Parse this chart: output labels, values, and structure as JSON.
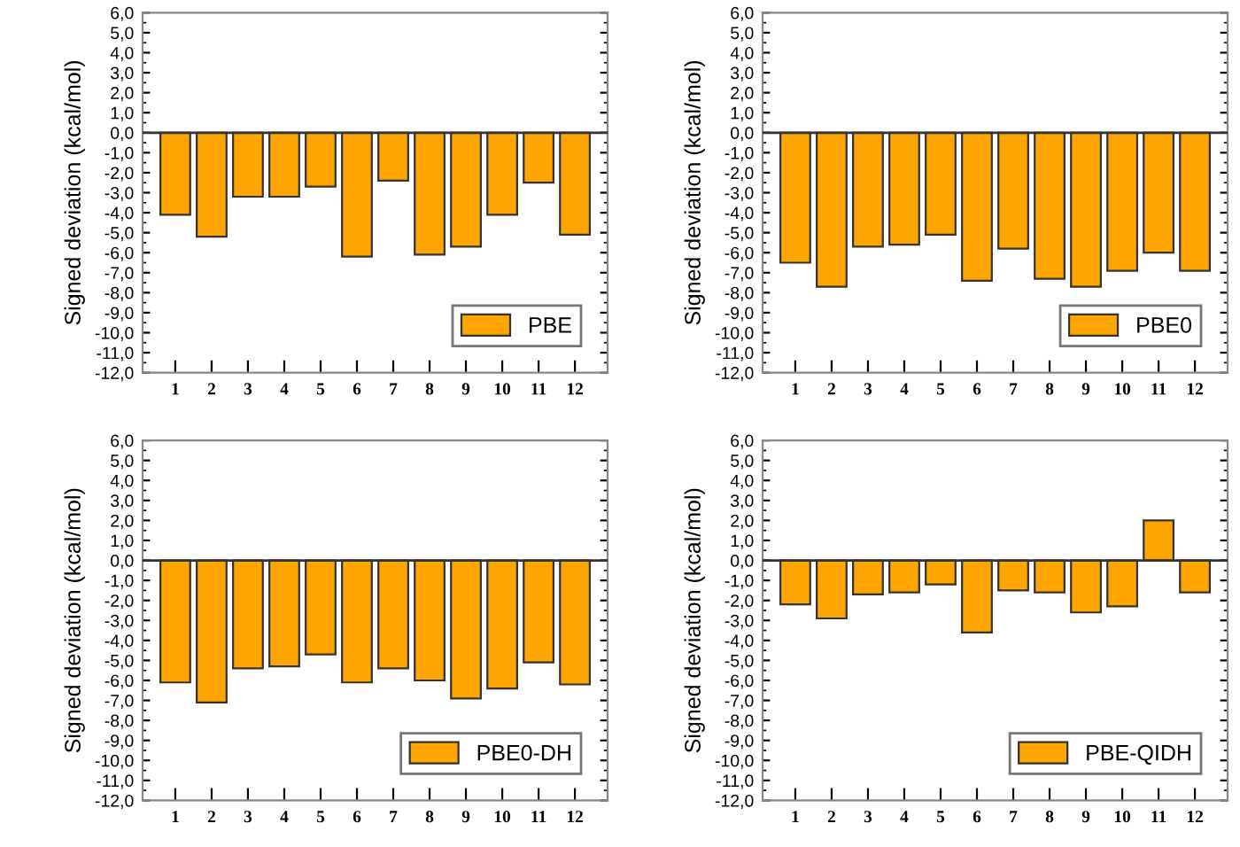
{
  "chart_data": [
    {
      "type": "bar",
      "ylabel": "Signed deviation (kcal/mol)",
      "categories": [
        "1",
        "2",
        "3",
        "4",
        "5",
        "6",
        "7",
        "8",
        "9",
        "10",
        "11",
        "12"
      ],
      "series": [
        {
          "name": "PBE",
          "color": "#ffa500",
          "values": [
            -4.1,
            -5.2,
            -3.2,
            -3.2,
            -2.7,
            -6.2,
            -2.4,
            -6.1,
            -5.7,
            -4.1,
            -2.5,
            -5.1
          ]
        }
      ],
      "ref_lines": [
        {
          "axis": "y",
          "value": 0,
          "color": "#333333"
        }
      ],
      "ylim": [
        -12,
        6
      ],
      "yticks": [
        {
          "value": -12,
          "label": "-12,0"
        },
        {
          "value": -11,
          "label": "-11,0"
        },
        {
          "value": -10,
          "label": "-10,0"
        },
        {
          "value": -9,
          "label": "-9,0"
        },
        {
          "value": -8,
          "label": "-8,0"
        },
        {
          "value": -7,
          "label": "-7,0"
        },
        {
          "value": -6,
          "label": "-6,0"
        },
        {
          "value": -5,
          "label": "-5,0"
        },
        {
          "value": -4,
          "label": "-4,0"
        },
        {
          "value": -3,
          "label": "-3,0"
        },
        {
          "value": -2,
          "label": "-2,0"
        },
        {
          "value": -1,
          "label": "-1,0"
        },
        {
          "value": 0,
          "label": "0,0"
        },
        {
          "value": 1,
          "label": "1,0"
        },
        {
          "value": 2,
          "label": "2,0"
        },
        {
          "value": 3,
          "label": "3,0"
        },
        {
          "value": 4,
          "label": "4,0"
        },
        {
          "value": 5,
          "label": "5,0"
        },
        {
          "value": 6,
          "label": "6,0"
        }
      ],
      "legend": "bottom right",
      "grid": false
    },
    {
      "type": "bar",
      "ylabel": "Signed deviation (kcal/mol)",
      "categories": [
        "1",
        "2",
        "3",
        "4",
        "5",
        "6",
        "7",
        "8",
        "9",
        "10",
        "11",
        "12"
      ],
      "series": [
        {
          "name": "PBE0",
          "color": "#ffa500",
          "values": [
            -6.5,
            -7.7,
            -5.7,
            -5.6,
            -5.1,
            -7.4,
            -5.8,
            -7.3,
            -7.7,
            -6.9,
            -6.0,
            -6.9
          ]
        }
      ],
      "ref_lines": [
        {
          "axis": "y",
          "value": 0,
          "color": "#333333"
        }
      ],
      "ylim": [
        -12,
        6
      ],
      "yticks": [
        {
          "value": -12,
          "label": "-12,0"
        },
        {
          "value": -11,
          "label": "-11,0"
        },
        {
          "value": -10,
          "label": "-10,0"
        },
        {
          "value": -9,
          "label": "-9,0"
        },
        {
          "value": -8,
          "label": "-8,0"
        },
        {
          "value": -7,
          "label": "-7,0"
        },
        {
          "value": -6,
          "label": "-6,0"
        },
        {
          "value": -5,
          "label": "-5,0"
        },
        {
          "value": -4,
          "label": "-4,0"
        },
        {
          "value": -3,
          "label": "-3,0"
        },
        {
          "value": -2,
          "label": "-2,0"
        },
        {
          "value": -1,
          "label": "-1,0"
        },
        {
          "value": 0,
          "label": "0,0"
        },
        {
          "value": 1,
          "label": "1,0"
        },
        {
          "value": 2,
          "label": "2,0"
        },
        {
          "value": 3,
          "label": "3,0"
        },
        {
          "value": 4,
          "label": "4,0"
        },
        {
          "value": 5,
          "label": "5,0"
        },
        {
          "value": 6,
          "label": "6,0"
        }
      ],
      "legend": "bottom right",
      "grid": false
    },
    {
      "type": "bar",
      "ylabel": "Signed deviation (kcal/mol)",
      "categories": [
        "1",
        "2",
        "3",
        "4",
        "5",
        "6",
        "7",
        "8",
        "9",
        "10",
        "11",
        "12"
      ],
      "series": [
        {
          "name": "PBE0-DH",
          "color": "#ffa500",
          "values": [
            -6.1,
            -7.1,
            -5.4,
            -5.3,
            -4.7,
            -6.1,
            -5.4,
            -6.0,
            -6.9,
            -6.4,
            -5.1,
            -6.2
          ]
        }
      ],
      "ref_lines": [
        {
          "axis": "y",
          "value": 0,
          "color": "#333333"
        }
      ],
      "ylim": [
        -12,
        6
      ],
      "yticks": [
        {
          "value": -12,
          "label": "-12,0"
        },
        {
          "value": -11,
          "label": "-11,0"
        },
        {
          "value": -10,
          "label": "-10,0"
        },
        {
          "value": -9,
          "label": "-9,0"
        },
        {
          "value": -8,
          "label": "-8,0"
        },
        {
          "value": -7,
          "label": "-7,0"
        },
        {
          "value": -6,
          "label": "-6,0"
        },
        {
          "value": -5,
          "label": "-5,0"
        },
        {
          "value": -4,
          "label": "-4,0"
        },
        {
          "value": -3,
          "label": "-3,0"
        },
        {
          "value": -2,
          "label": "-2,0"
        },
        {
          "value": -1,
          "label": "-1,0"
        },
        {
          "value": 0,
          "label": "0,0"
        },
        {
          "value": 1,
          "label": "1,0"
        },
        {
          "value": 2,
          "label": "2,0"
        },
        {
          "value": 3,
          "label": "3,0"
        },
        {
          "value": 4,
          "label": "4,0"
        },
        {
          "value": 5,
          "label": "5,0"
        },
        {
          "value": 6,
          "label": "6,0"
        }
      ],
      "legend": "bottom right",
      "grid": false
    },
    {
      "type": "bar",
      "ylabel": "Signed deviation (kcal/mol)",
      "categories": [
        "1",
        "2",
        "3",
        "4",
        "5",
        "6",
        "7",
        "8",
        "9",
        "10",
        "11",
        "12"
      ],
      "series": [
        {
          "name": "PBE-QIDH",
          "color": "#ffa500",
          "values": [
            -2.2,
            -2.9,
            -1.7,
            -1.6,
            -1.2,
            -3.6,
            -1.5,
            -1.6,
            -2.6,
            -2.3,
            2.0,
            -1.6
          ]
        }
      ],
      "ref_lines": [
        {
          "axis": "y",
          "value": 0,
          "color": "#333333"
        }
      ],
      "ylim": [
        -12,
        6
      ],
      "yticks": [
        {
          "value": -12,
          "label": "-12,0"
        },
        {
          "value": -11,
          "label": "-11,0"
        },
        {
          "value": -10,
          "label": "-10,0"
        },
        {
          "value": -9,
          "label": "-9,0"
        },
        {
          "value": -8,
          "label": "-8,0"
        },
        {
          "value": -7,
          "label": "-7,0"
        },
        {
          "value": -6,
          "label": "-6,0"
        },
        {
          "value": -5,
          "label": "-5,0"
        },
        {
          "value": -4,
          "label": "-4,0"
        },
        {
          "value": -3,
          "label": "-3,0"
        },
        {
          "value": -2,
          "label": "-2,0"
        },
        {
          "value": -1,
          "label": "-1,0"
        },
        {
          "value": 0,
          "label": "0,0"
        },
        {
          "value": 1,
          "label": "1,0"
        },
        {
          "value": 2,
          "label": "2,0"
        },
        {
          "value": 3,
          "label": "3,0"
        },
        {
          "value": 4,
          "label": "4,0"
        },
        {
          "value": 5,
          "label": "5,0"
        },
        {
          "value": 6,
          "label": "6,0"
        }
      ],
      "legend": "bottom right",
      "grid": false
    }
  ]
}
